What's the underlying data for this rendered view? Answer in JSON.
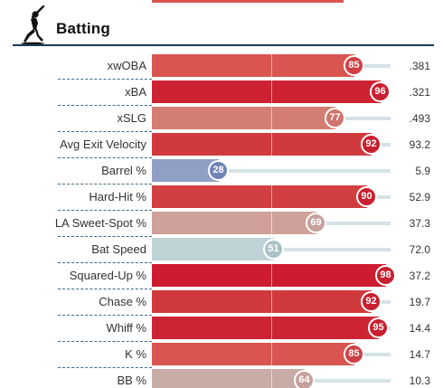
{
  "section": {
    "title": "Batting",
    "icon": "batter-silhouette-icon"
  },
  "colors": {
    "header_rule": "#1a3a5a",
    "dash": "#3d6a8a",
    "track": "#d5e2e6"
  },
  "rows": [
    {
      "label": "xwOBA",
      "percentile": 85,
      "value": ".381",
      "color": "#d8564f"
    },
    {
      "label": "xBA",
      "percentile": 96,
      "value": ".321",
      "color": "#cc2232"
    },
    {
      "label": "xSLG",
      "percentile": 77,
      "value": ".493",
      "color": "#d37e73"
    },
    {
      "label": "Avg Exit Velocity",
      "percentile": 92,
      "value": "93.2",
      "color": "#d13a3d"
    },
    {
      "label": "Barrel %",
      "percentile": 28,
      "value": "5.9",
      "color": "#8f9fc6"
    },
    {
      "label": "Hard-Hit %",
      "percentile": 90,
      "value": "52.9",
      "color": "#d23f40"
    },
    {
      "label": "LA Sweet-Spot %",
      "percentile": 69,
      "value": "37.3",
      "color": "#d0a09a"
    },
    {
      "label": "Bat Speed",
      "percentile": 51,
      "value": "72.0",
      "color": "#bed3d6"
    },
    {
      "label": "Squared-Up %",
      "percentile": 98,
      "value": "37.2",
      "color": "#cd1c30"
    },
    {
      "label": "Chase %",
      "percentile": 92,
      "value": "19.7",
      "color": "#d13a3d"
    },
    {
      "label": "Whiff %",
      "percentile": 95,
      "value": "14.4",
      "color": "#cd2434"
    },
    {
      "label": "K %",
      "percentile": 85,
      "value": "14.7",
      "color": "#d8564f"
    },
    {
      "label": "BB %",
      "percentile": 64,
      "value": "10.3",
      "color": "#c8aca6"
    }
  ]
}
